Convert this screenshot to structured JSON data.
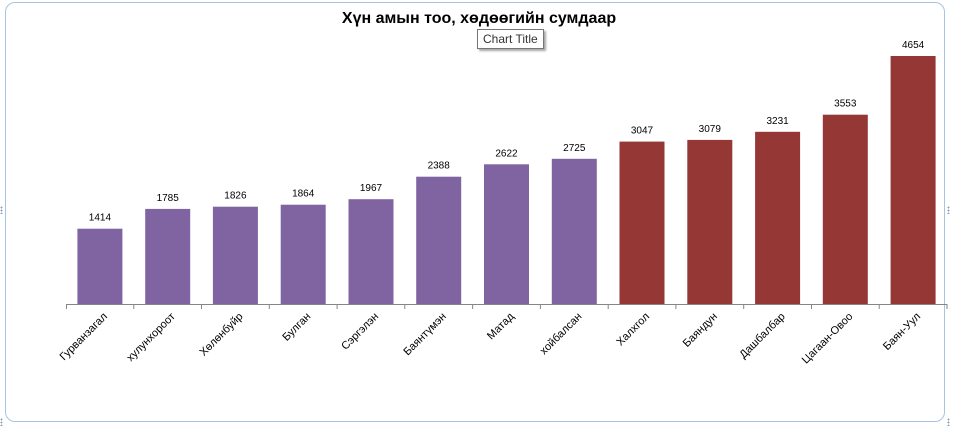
{
  "chart_data": {
    "type": "bar",
    "title": "Хүн амын тоо, хөдөөгийн сумдаар",
    "categories": [
      "Гурванзагал",
      "хулунхороот",
      "Хөлөнбуйр",
      "Булган",
      "Сэргэлэн",
      "Баянтүмэн",
      "Матад",
      "хойбалсан",
      "Халхгол",
      "Баяндун",
      "Дашбалбар",
      "Цагаан-Овоо",
      "Баян-Уул"
    ],
    "values": [
      1414,
      1785,
      1826,
      1864,
      1967,
      2388,
      2622,
      2725,
      3047,
      3079,
      3231,
      3553,
      4654
    ],
    "bar_colors": [
      "#8064a2",
      "#8064a2",
      "#8064a2",
      "#8064a2",
      "#8064a2",
      "#8064a2",
      "#8064a2",
      "#8064a2",
      "#953735",
      "#953735",
      "#953735",
      "#953735",
      "#953735"
    ],
    "ylim": [
      0,
      4654
    ],
    "grid": false,
    "legend": "none",
    "data_labels": true
  },
  "tooltip": {
    "text": "Chart Title"
  }
}
